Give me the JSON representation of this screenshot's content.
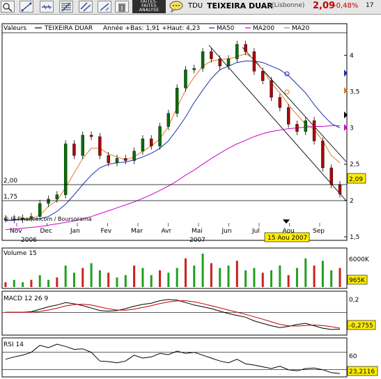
{
  "toolbar": {
    "buttons": [
      {
        "icon": "zoom-icon"
      },
      {
        "icon": "draw-line-icon"
      },
      {
        "icon": "horizontal-line-icon"
      },
      {
        "icon": "fibonacci-icon"
      },
      {
        "icon": "parallel-lines-icon"
      },
      {
        "icon": "pointer-line-icon"
      },
      {
        "icon": "trash-icon"
      }
    ],
    "promo_lines": [
      "FAITES-",
      "FAITES",
      "ANALYSE"
    ],
    "talk_icon": "speech-bubble-icon"
  },
  "ticker": {
    "symbol": "TDU",
    "name": "TEIXEIRA DUAR",
    "market": "(Lisbonne)",
    "price": "2,09",
    "change": "-0,48%",
    "time": "17"
  },
  "legend": {
    "label": "Valeurs",
    "name": "TEIXEIRA DUAR",
    "range": "Année +Bas: 1,91 +Haut: 4,23",
    "ma50": "MA50",
    "ma200": "MA200",
    "ma20": "MA20"
  },
  "colors": {
    "ma50": "#1a2ea8",
    "ma200": "#d000d0",
    "ma20": "#e07820",
    "price_up": "#007000",
    "price_down": "#b00000",
    "highlight": "#ffee00",
    "last_price_box": "#ffee00"
  },
  "copyright": "© IT-Finance.com / Boursorama",
  "levels": {
    "top": "2,00",
    "bottom": "1,75"
  },
  "last_price_label": "2,09",
  "date_tooltip": "15 Aou 2007",
  "panels": {
    "volume": {
      "title": "Volume 15",
      "axis_label": "6000K",
      "value_label": "965K"
    },
    "macd": {
      "title": "MACD 12 26 9",
      "axis_label": "0,2",
      "value_label": "-0,2755"
    },
    "rsi": {
      "title": "RSI 14",
      "axis_label": "60",
      "value_label": "23,2116"
    }
  },
  "chart_data": {
    "type": "line",
    "title": "TEIXEIRA DUAR",
    "months": [
      "Nov",
      "Dec",
      "Jan",
      "Fev",
      "Mar",
      "Avr",
      "Mai",
      "Jun",
      "Jul",
      "Aou",
      "Sep"
    ],
    "years": [
      "2006",
      "2007"
    ],
    "ylim": [
      1.5,
      4.3
    ],
    "y_ticks": [
      "1,5",
      "2",
      "2,5",
      "3",
      "3,5",
      "4"
    ],
    "series": [
      {
        "name": "TEIXEIRA DUAR",
        "values": [
          1.75,
          1.74,
          1.76,
          1.78,
          1.96,
          2.02,
          2.08,
          2.78,
          2.62,
          2.9,
          2.88,
          2.62,
          2.52,
          2.58,
          2.55,
          2.68,
          2.85,
          2.75,
          3.02,
          3.2,
          3.55,
          3.8,
          3.82,
          4.05,
          3.95,
          3.85,
          3.95,
          4.15,
          4.05,
          3.78,
          3.65,
          3.42,
          3.28,
          3.05,
          2.95,
          3.1,
          2.82,
          2.45,
          2.22,
          2.09
        ]
      },
      {
        "name": "MA20",
        "values": [
          1.74,
          1.74,
          1.75,
          1.75,
          1.8,
          1.92,
          2.0,
          2.18,
          2.38,
          2.58,
          2.72,
          2.72,
          2.64,
          2.6,
          2.56,
          2.6,
          2.68,
          2.75,
          2.85,
          3.02,
          3.28,
          3.52,
          3.7,
          3.85,
          3.92,
          3.94,
          3.95,
          3.98,
          4.02,
          3.95,
          3.8,
          3.62,
          3.48,
          3.32,
          3.18,
          3.05,
          2.98,
          2.82,
          2.62,
          2.52
        ]
      },
      {
        "name": "MA50",
        "values": [
          1.72,
          1.73,
          1.74,
          1.74,
          1.75,
          1.78,
          1.85,
          1.95,
          2.08,
          2.22,
          2.35,
          2.45,
          2.5,
          2.52,
          2.53,
          2.56,
          2.6,
          2.65,
          2.72,
          2.82,
          2.98,
          3.15,
          3.35,
          3.52,
          3.68,
          3.8,
          3.85,
          3.9,
          3.92,
          3.92,
          3.9,
          3.85,
          3.8,
          3.72,
          3.6,
          3.48,
          3.32,
          3.18,
          3.06,
          3.0
        ]
      },
      {
        "name": "MA200",
        "values": [
          1.6,
          1.61,
          1.62,
          1.63,
          1.64,
          1.66,
          1.68,
          1.7,
          1.72,
          1.75,
          1.78,
          1.82,
          1.86,
          1.9,
          1.94,
          1.98,
          2.03,
          2.08,
          2.14,
          2.2,
          2.27,
          2.35,
          2.42,
          2.5,
          2.58,
          2.65,
          2.72,
          2.78,
          2.83,
          2.88,
          2.92,
          2.95,
          2.97,
          2.99,
          3.0,
          3.01,
          3.02,
          3.02,
          3.03,
          3.03
        ]
      }
    ],
    "volume_values": [
      2,
      3,
      2,
      3,
      5,
      3,
      4,
      9,
      6,
      8,
      10,
      7,
      6,
      4,
      5,
      9,
      8,
      5,
      7,
      6,
      8,
      12,
      9,
      14,
      10,
      8,
      9,
      11,
      7,
      8,
      6,
      7,
      9,
      5,
      8,
      12,
      9,
      11,
      7,
      8
    ],
    "macd_values": [
      0.0,
      0.0,
      0.0,
      0.01,
      0.05,
      0.09,
      0.12,
      0.16,
      0.14,
      0.11,
      0.07,
      0.03,
      0.02,
      0.03,
      0.06,
      0.1,
      0.13,
      0.15,
      0.19,
      0.21,
      0.2,
      0.16,
      0.12,
      0.09,
      0.06,
      0.02,
      -0.02,
      -0.05,
      -0.08,
      -0.14,
      -0.18,
      -0.22,
      -0.25,
      -0.23,
      -0.2,
      -0.18,
      -0.22,
      -0.26,
      -0.28,
      -0.2755
    ],
    "macd_ylim": [
      -0.35,
      0.3
    ],
    "rsi_values": [
      48,
      52,
      55,
      60,
      72,
      68,
      74,
      70,
      65,
      66,
      60,
      45,
      44,
      42,
      45,
      55,
      50,
      52,
      58,
      56,
      62,
      58,
      60,
      55,
      50,
      45,
      42,
      48,
      40,
      38,
      35,
      32,
      36,
      30,
      28,
      32,
      33,
      30,
      25,
      23.2116
    ],
    "rsi_ylim": [
      20,
      80
    ]
  }
}
